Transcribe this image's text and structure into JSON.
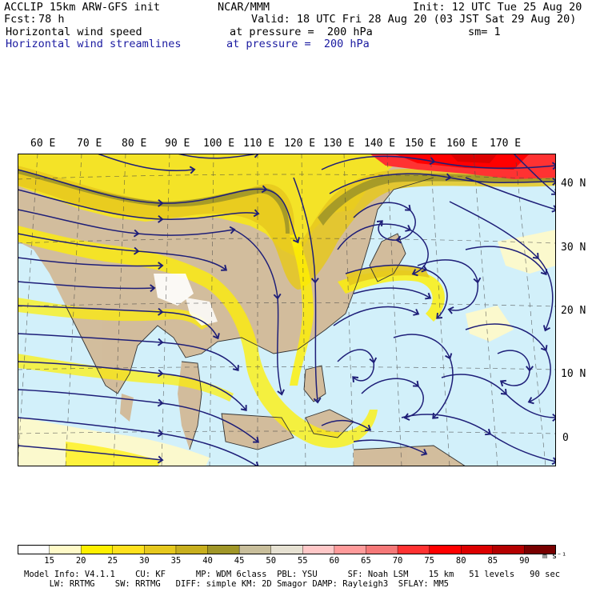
{
  "header": {
    "model": "ACCLIP 15km ARW-GFS init",
    "org": "NCAR/MMM",
    "init": "Init: 12 UTC Tue 25 Aug 20",
    "fcst_label": "Fcst:",
    "fcst_value": "78 h",
    "valid": "Valid: 18 UTC Fri 28 Aug 20 (03 JST Sat 29 Aug 20)",
    "field1": "Horizontal wind speed",
    "field1_level": "at pressure =  200 hPa",
    "sm": "sm= 1",
    "field2": "Horizontal wind streamlines",
    "field2_level": "at pressure =  200 hPa"
  },
  "axes": {
    "lon_labels": [
      "60 E",
      "70 E",
      "80 E",
      "90 E",
      "100 E",
      "110 E",
      "120 E",
      "130 E",
      "140 E",
      "150 E",
      "160 E",
      "170 E"
    ],
    "lat_labels": [
      "40 N",
      "30 N",
      "20 N",
      "10 N",
      "0"
    ]
  },
  "colorbar": {
    "levels": [
      "15",
      "20",
      "25",
      "30",
      "35",
      "40",
      "45",
      "50",
      "55",
      "60",
      "65",
      "70",
      "75",
      "80",
      "85",
      "90"
    ],
    "unit": "m s⁻¹",
    "colors": [
      "#ffffff",
      "#fffac8",
      "#fff000",
      "#ffe11e",
      "#e6c81e",
      "#c8af1e",
      "#a09628",
      "#c8be9b",
      "#e6e1d2",
      "#ffc8c8",
      "#ff9b9b",
      "#f57878",
      "#ff3232",
      "#ff0000",
      "#dc0000",
      "#b40000",
      "#780000"
    ]
  },
  "map": {
    "colors": {
      "ocean": "#d2f0fa",
      "land": "#d2b48c",
      "streamline": "#1e1e78",
      "jet_core": "#a09628"
    }
  },
  "footer": {
    "line1": "Model Info: V4.1.1    CU: KF      MP: WDM 6class  PBL: YSU      SF: Noah LSM    15 km   51 levels   90 sec",
    "line2": "     LW: RRTMG    SW: RRTMG   DIFF: simple KM: 2D Smagor DAMP: Rayleigh3  SFLAY: MM5"
  }
}
